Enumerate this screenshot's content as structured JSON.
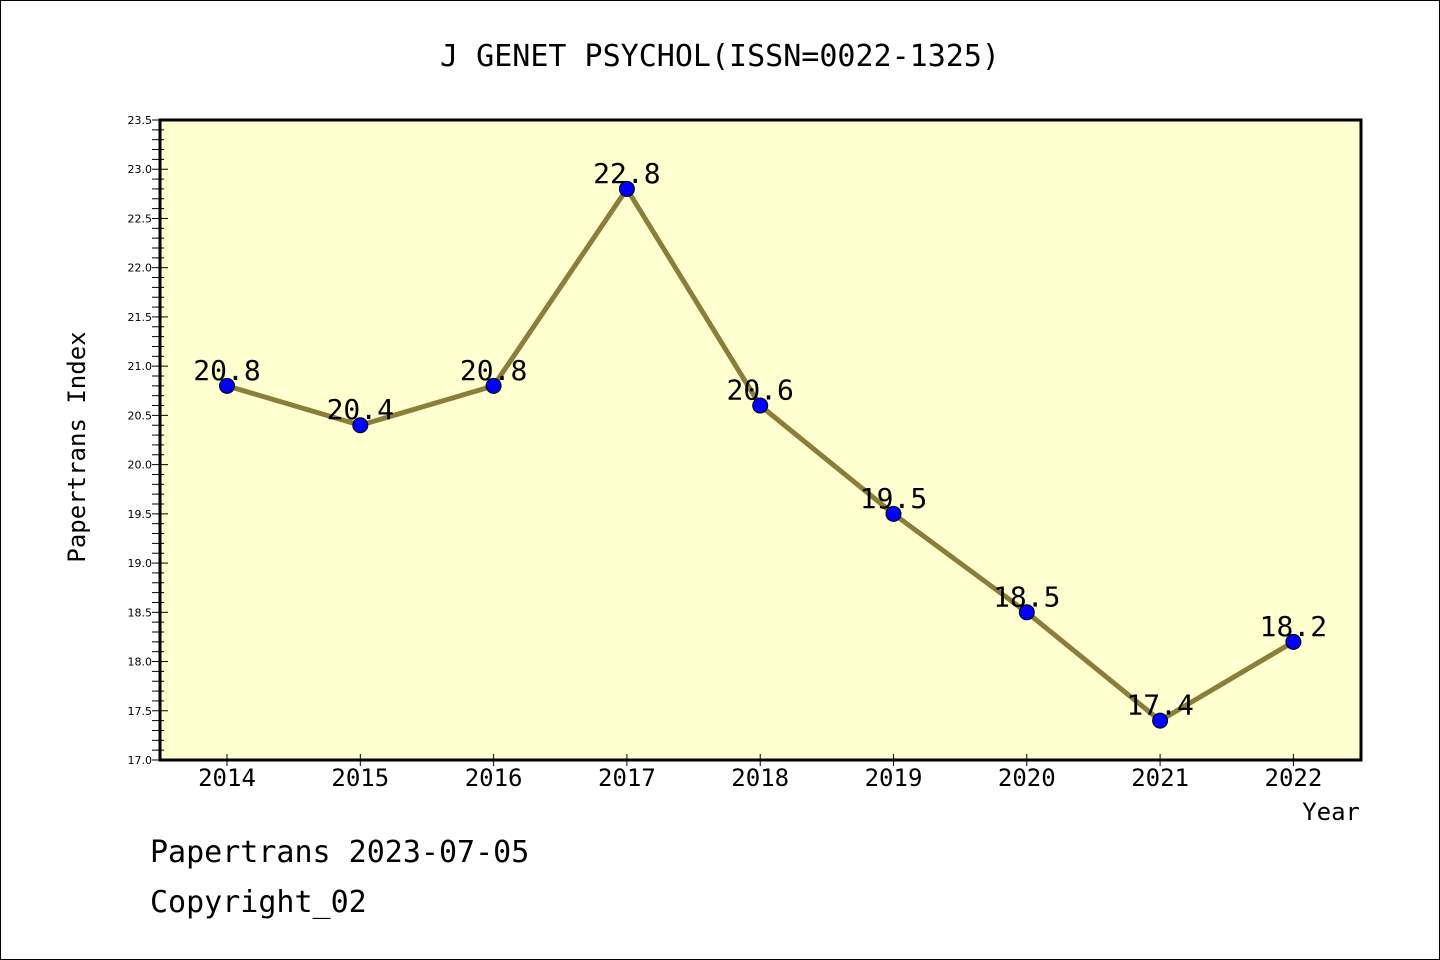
{
  "chart_data": {
    "type": "line",
    "title": "J GENET PSYCHOL(ISSN=0022-1325)",
    "xlabel": "Year",
    "ylabel": "Papertrans Index",
    "categories": [
      "2014",
      "2015",
      "2016",
      "2017",
      "2018",
      "2019",
      "2020",
      "2021",
      "2022"
    ],
    "series": [
      {
        "values": [
          20.8,
          20.4,
          20.8,
          22.8,
          20.6,
          19.5,
          18.5,
          17.4,
          18.2
        ],
        "labels": [
          "20.8",
          "20.4",
          "20.8",
          "22.8",
          "20.6",
          "19.5",
          "18.5",
          "17.4",
          "18.2"
        ]
      }
    ],
    "ylim": [
      17.0,
      23.5
    ],
    "yticks": [
      "17.0",
      "17.5",
      "18.0",
      "18.5",
      "19.0",
      "19.5",
      "20.0",
      "20.5",
      "21.0",
      "21.5",
      "22.0",
      "22.5",
      "23.0",
      "23.5"
    ],
    "grid": false,
    "legend": "none",
    "colors": {
      "plot_background": "#ffffd0",
      "line": "#8b7d3a",
      "marker": "#0000ff"
    }
  },
  "footer": {
    "line1": "Papertrans 2023-07-05",
    "line2": "Copyright_02"
  }
}
